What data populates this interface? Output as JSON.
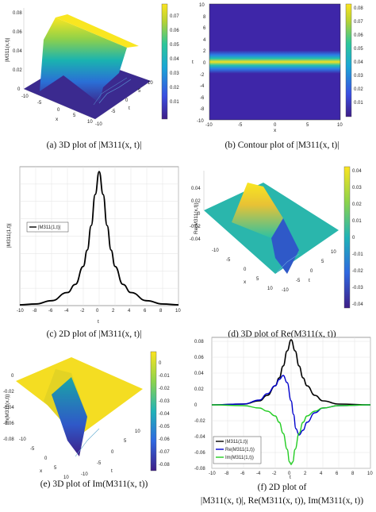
{
  "captions": {
    "a": "(a) 3D plot of |M311(x, t)|",
    "b": "(b) Contour plot of |M311(x, t)|",
    "c": "(c) 2D plot of |M311(x, t)|",
    "d": "(d) 3D plot of Re(M311(x, t))",
    "e": "(e) 3D plot of Im(M311(x, t))",
    "f_line1": "(f) 2D plot of",
    "f_line2": "|M311(x, t)|, Re(M311(x, t)), Im(M311(x, t))"
  },
  "chart_data": [
    {
      "id": "a",
      "type": "surface3d",
      "zlabel": "|M311(x,t)|",
      "xlabel": "x",
      "ylabel": "t",
      "x_ticks": [
        "-10",
        "-5",
        "0",
        "5",
        "10"
      ],
      "t_ticks": [
        "-10",
        "-5",
        "0",
        "5",
        "10"
      ],
      "z_ticks": [
        "0",
        "0.02",
        "0.04",
        "0.06",
        "0.08"
      ],
      "colorbar": {
        "ticks": [
          "0.07",
          "0.06",
          "0.05",
          "0.04",
          "0.03",
          "0.02",
          "0.01"
        ],
        "range": [
          0,
          0.082
        ]
      }
    },
    {
      "id": "b",
      "type": "heatmap",
      "xlabel": "x",
      "ylabel": "t",
      "x_ticks": [
        "-10",
        "-5",
        "0",
        "5",
        "10"
      ],
      "y_ticks": [
        "10",
        "8",
        "6",
        "4",
        "2",
        "0",
        "-2",
        "-4",
        "-6",
        "-8",
        "-10"
      ],
      "xlim": [
        -10,
        10
      ],
      "ylim": [
        -10,
        10
      ],
      "colorbar": {
        "ticks": [
          "0.08",
          "0.07",
          "0.06",
          "0.05",
          "0.04",
          "0.03",
          "0.02",
          "0.01"
        ],
        "range": [
          0,
          0.082
        ]
      }
    },
    {
      "id": "c",
      "type": "line",
      "xlabel": "t",
      "ylabel": "|M311(1,t)|",
      "xlim": [
        -10,
        10
      ],
      "ylim": [
        0,
        0.085
      ],
      "x_ticks": [
        "-10",
        "-8",
        "-6",
        "-4",
        "-2",
        "0",
        "2",
        "4",
        "6",
        "8",
        "10"
      ],
      "legend": [
        "|M311(1,t)|"
      ],
      "legend_position": "left",
      "grid": true,
      "series": [
        {
          "name": "|M311(1,t)|",
          "x": [
            -10,
            -8,
            -6,
            -4,
            -3,
            -2,
            -1.5,
            -1,
            -0.5,
            0,
            0.5,
            1,
            1.5,
            2,
            3,
            4,
            6,
            8,
            10
          ],
          "values": [
            0.0005,
            0.001,
            0.003,
            0.008,
            0.013,
            0.024,
            0.034,
            0.049,
            0.068,
            0.082,
            0.068,
            0.049,
            0.034,
            0.024,
            0.013,
            0.008,
            0.003,
            0.001,
            0.0005
          ]
        }
      ]
    },
    {
      "id": "d",
      "type": "surface3d",
      "zlabel": "Re(M311(x,t))",
      "xlabel": "x",
      "ylabel": "t",
      "x_ticks": [
        "-10",
        "-5",
        "0",
        "5",
        "10"
      ],
      "t_ticks": [
        "-10",
        "-5",
        "0",
        "5",
        "10"
      ],
      "z_ticks": [
        "0.04",
        "0.02",
        "0",
        "-0.02",
        "-0.04"
      ],
      "colorbar": {
        "ticks": [
          "0.04",
          "0.03",
          "0.02",
          "0.01",
          "0",
          "-0.01",
          "-0.02",
          "-0.03",
          "-0.04"
        ],
        "range": [
          -0.042,
          0.042
        ]
      }
    },
    {
      "id": "e",
      "type": "surface3d",
      "zlabel": "Im(M311(x,t))",
      "xlabel": "x",
      "ylabel": "t",
      "x_ticks": [
        "-10",
        "-5",
        "0",
        "5",
        "10"
      ],
      "t_ticks": [
        "-10",
        "-5",
        "0",
        "5",
        "10"
      ],
      "z_ticks": [
        "0",
        "-0.02",
        "-0.04",
        "-0.06",
        "-0.08"
      ],
      "colorbar": {
        "ticks": [
          "0",
          "-0.01",
          "-0.02",
          "-0.03",
          "-0.04",
          "-0.05",
          "-0.06",
          "-0.07",
          "-0.08"
        ],
        "range": [
          -0.085,
          0.005
        ]
      }
    },
    {
      "id": "f",
      "type": "line",
      "xlabel": "t",
      "ylabel": "",
      "xlim": [
        -10,
        10
      ],
      "ylim": [
        -0.08,
        0.085
      ],
      "x_ticks": [
        "-10",
        "-8",
        "-6",
        "-4",
        "-2",
        "0",
        "2",
        "4",
        "6",
        "8",
        "10"
      ],
      "y_ticks": [
        "0.08",
        "0.06",
        "0.04",
        "0.02",
        "0",
        "-0.02",
        "-0.04",
        "-0.06",
        "-0.08"
      ],
      "legend_position": "bottom-left",
      "grid": true,
      "series": [
        {
          "name": "|M311(1,t)|",
          "color": "#000000",
          "x": [
            -10,
            -6,
            -4,
            -3,
            -2,
            -1.5,
            -1,
            -0.5,
            0,
            0.5,
            1,
            1.5,
            2,
            3,
            4,
            6,
            10
          ],
          "values": [
            0,
            0.001,
            0.005,
            0.012,
            0.024,
            0.034,
            0.049,
            0.068,
            0.082,
            0.068,
            0.049,
            0.034,
            0.024,
            0.012,
            0.005,
            0.001,
            0
          ]
        },
        {
          "name": "Re(M311(1,t))",
          "color": "#0000cc",
          "x": [
            -10,
            -6,
            -4,
            -3,
            -2,
            -1.5,
            -1,
            -0.5,
            0,
            0.3,
            0.6,
            1,
            1.5,
            2,
            3,
            4,
            6,
            10
          ],
          "values": [
            0,
            0.001,
            0.006,
            0.014,
            0.024,
            0.032,
            0.037,
            0.028,
            0.005,
            -0.012,
            -0.03,
            -0.038,
            -0.032,
            -0.022,
            -0.01,
            -0.004,
            -0.001,
            0
          ]
        },
        {
          "name": "Im(M311(1,t))",
          "color": "#22cc22",
          "x": [
            -10,
            -6,
            -4,
            -3,
            -2,
            -1.5,
            -1,
            -0.5,
            -0.2,
            0,
            0.2,
            0.5,
            1,
            1.5,
            2,
            3,
            4,
            6,
            10
          ],
          "values": [
            0,
            -0.001,
            -0.004,
            -0.008,
            -0.014,
            -0.022,
            -0.036,
            -0.056,
            -0.072,
            -0.075,
            -0.072,
            -0.056,
            -0.036,
            -0.022,
            -0.014,
            -0.008,
            -0.004,
            -0.001,
            0
          ]
        }
      ]
    }
  ]
}
